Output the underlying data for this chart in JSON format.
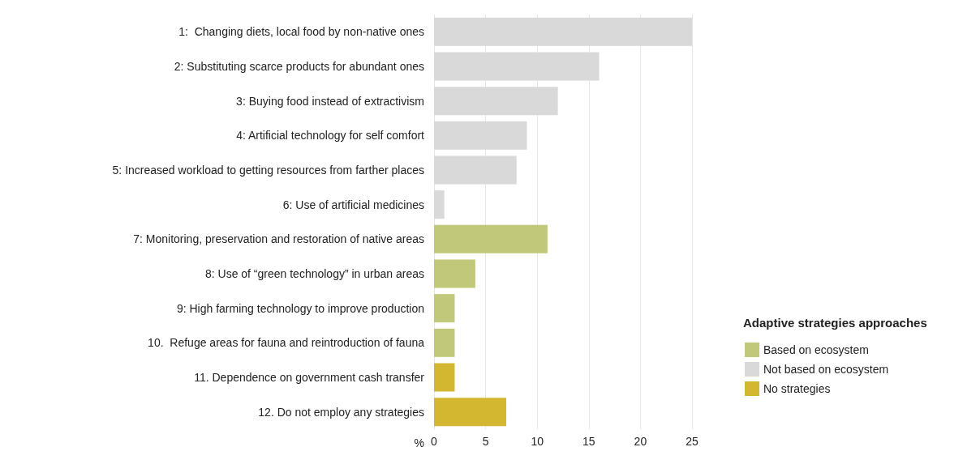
{
  "chart_data": {
    "type": "bar",
    "orientation": "horizontal",
    "categories": [
      "1:  Changing diets, local food by non-native ones",
      "2: Substituting scarce products for abundant ones",
      "3: Buying food instead of extractivism",
      "4: Artificial technology for self comfort",
      "5: Increased workload to getting resources from farther places",
      "6: Use of artificial medicines",
      "7: Monitoring, preservation and restoration of native areas",
      "8: Use of “green technology” in urban areas",
      "9: High farming technology to improve production",
      "10.  Refuge areas for fauna and reintroduction of fauna",
      "11. Dependence on government cash transfer",
      "12. Do not employ any strategies"
    ],
    "series": [
      {
        "name": "Based on ecosystem",
        "color": "#c2c87a",
        "values": [
          null,
          null,
          null,
          null,
          null,
          null,
          11,
          4,
          2,
          2,
          null,
          null
        ]
      },
      {
        "name": "Not based on ecosystem",
        "color": "#d9d9d9",
        "values": [
          25,
          16,
          12,
          9,
          8,
          1,
          null,
          null,
          null,
          null,
          null,
          null
        ]
      },
      {
        "name": "No strategies",
        "color": "#d4b731",
        "values": [
          null,
          null,
          null,
          null,
          null,
          null,
          null,
          null,
          null,
          null,
          2,
          7
        ]
      }
    ],
    "xlabel": "%",
    "xlim": [
      0,
      25
    ],
    "xticks": [
      0,
      5,
      10,
      15,
      20,
      25
    ],
    "grid": "x",
    "legend": "right",
    "legend_title": "Adaptive strategies approaches"
  }
}
